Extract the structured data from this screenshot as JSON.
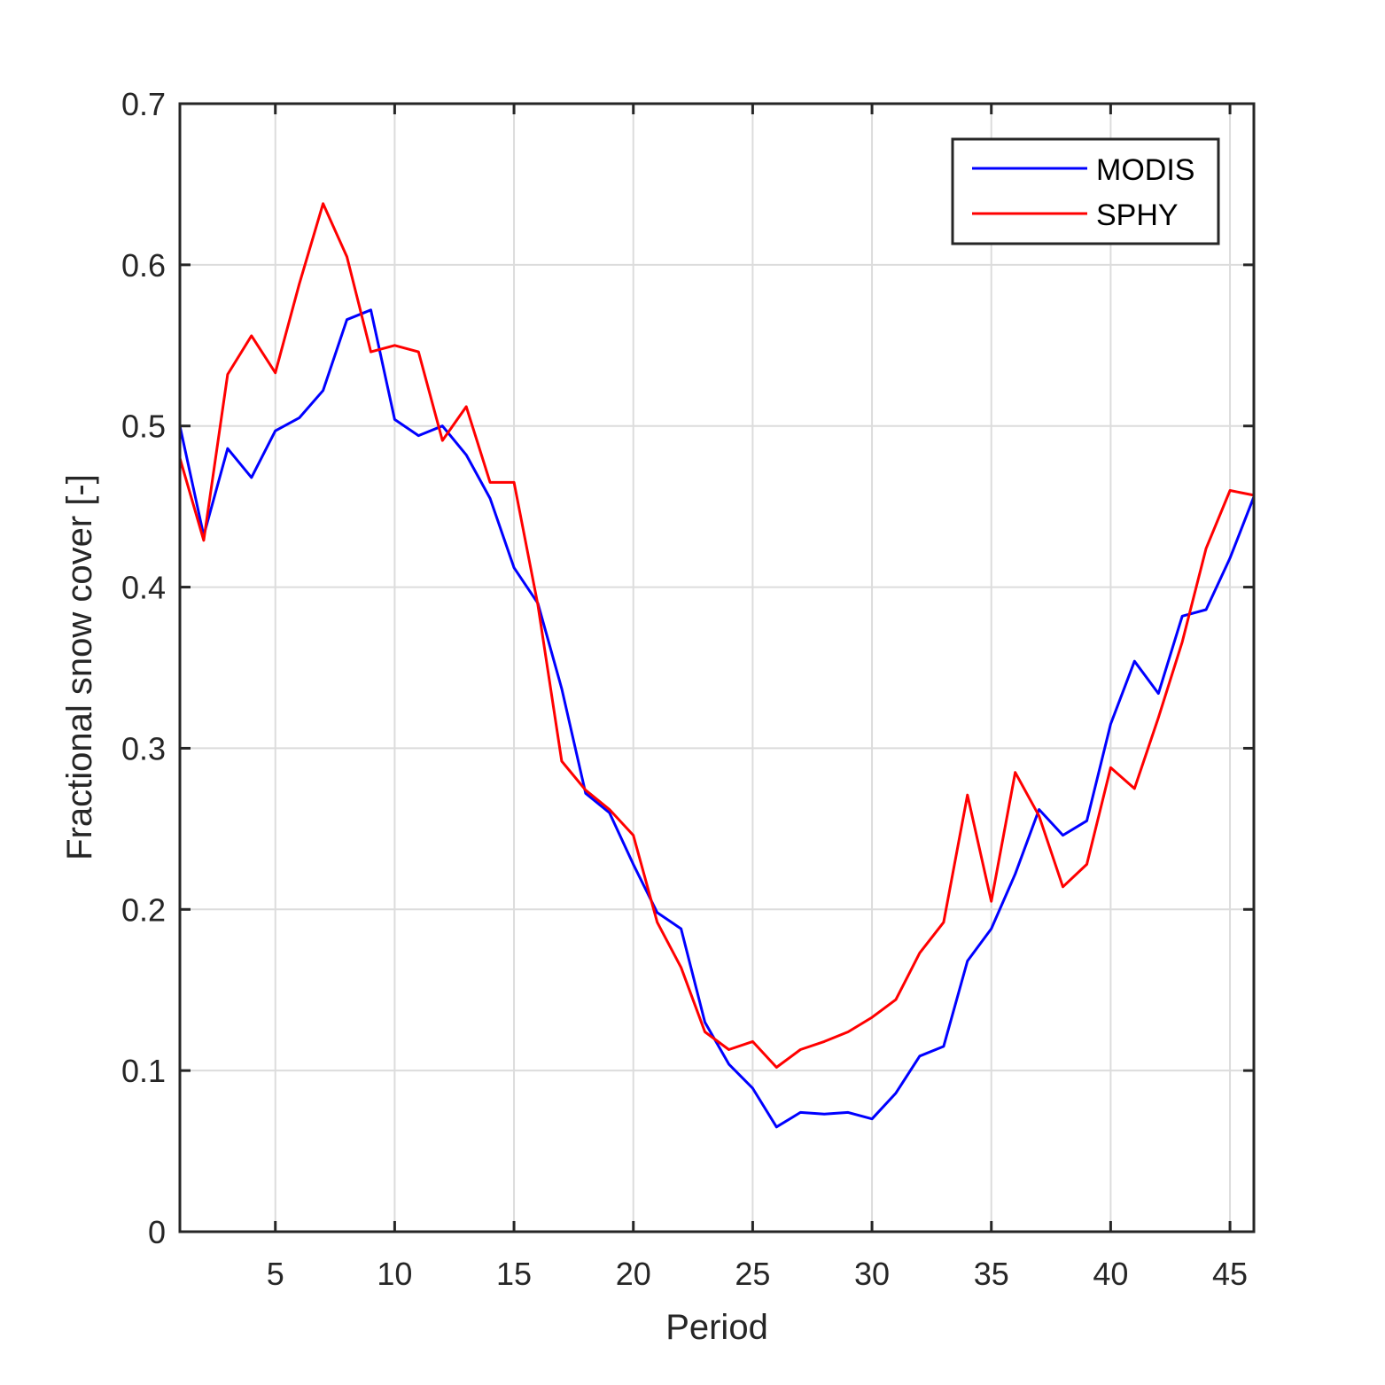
{
  "chart_data": {
    "type": "line",
    "xlabel": "Period",
    "ylabel": "Fractional snow cover [-]",
    "xlim": [
      1,
      46
    ],
    "ylim": [
      0,
      0.7
    ],
    "xticks": [
      5,
      10,
      15,
      20,
      25,
      30,
      35,
      40,
      45
    ],
    "yticks": [
      0,
      0.1,
      0.2,
      0.3,
      0.4,
      0.5,
      0.6,
      0.7
    ],
    "grid": true,
    "legend_position": "top-right",
    "x": [
      1,
      2,
      3,
      4,
      5,
      6,
      7,
      8,
      9,
      10,
      11,
      12,
      13,
      14,
      15,
      16,
      17,
      18,
      19,
      20,
      21,
      22,
      23,
      24,
      25,
      26,
      27,
      28,
      29,
      30,
      31,
      32,
      33,
      34,
      35,
      36,
      37,
      38,
      39,
      40,
      41,
      42,
      43,
      44,
      45,
      46
    ],
    "series": [
      {
        "name": "MODIS",
        "color": "#0000ff",
        "values": [
          0.5,
          0.432,
          0.486,
          0.468,
          0.497,
          0.505,
          0.522,
          0.566,
          0.572,
          0.504,
          0.494,
          0.5,
          0.482,
          0.455,
          0.412,
          0.39,
          0.337,
          0.272,
          0.26,
          0.228,
          0.198,
          0.188,
          0.13,
          0.104,
          0.089,
          0.065,
          0.074,
          0.073,
          0.074,
          0.07,
          0.086,
          0.109,
          0.115,
          0.168,
          0.188,
          0.222,
          0.262,
          0.246,
          0.255,
          0.315,
          0.354,
          0.334,
          0.382,
          0.386,
          0.418,
          0.456
        ]
      },
      {
        "name": "SPHY",
        "color": "#ff0000",
        "values": [
          0.48,
          0.429,
          0.532,
          0.556,
          0.533,
          0.588,
          0.638,
          0.605,
          0.546,
          0.55,
          0.546,
          0.491,
          0.512,
          0.465,
          0.465,
          0.389,
          0.292,
          0.274,
          0.262,
          0.246,
          0.192,
          0.164,
          0.124,
          0.113,
          0.118,
          0.102,
          0.113,
          0.118,
          0.124,
          0.133,
          0.144,
          0.173,
          0.192,
          0.271,
          0.205,
          0.285,
          0.258,
          0.214,
          0.228,
          0.288,
          0.275,
          0.319,
          0.366,
          0.424,
          0.46,
          0.457
        ]
      }
    ]
  }
}
